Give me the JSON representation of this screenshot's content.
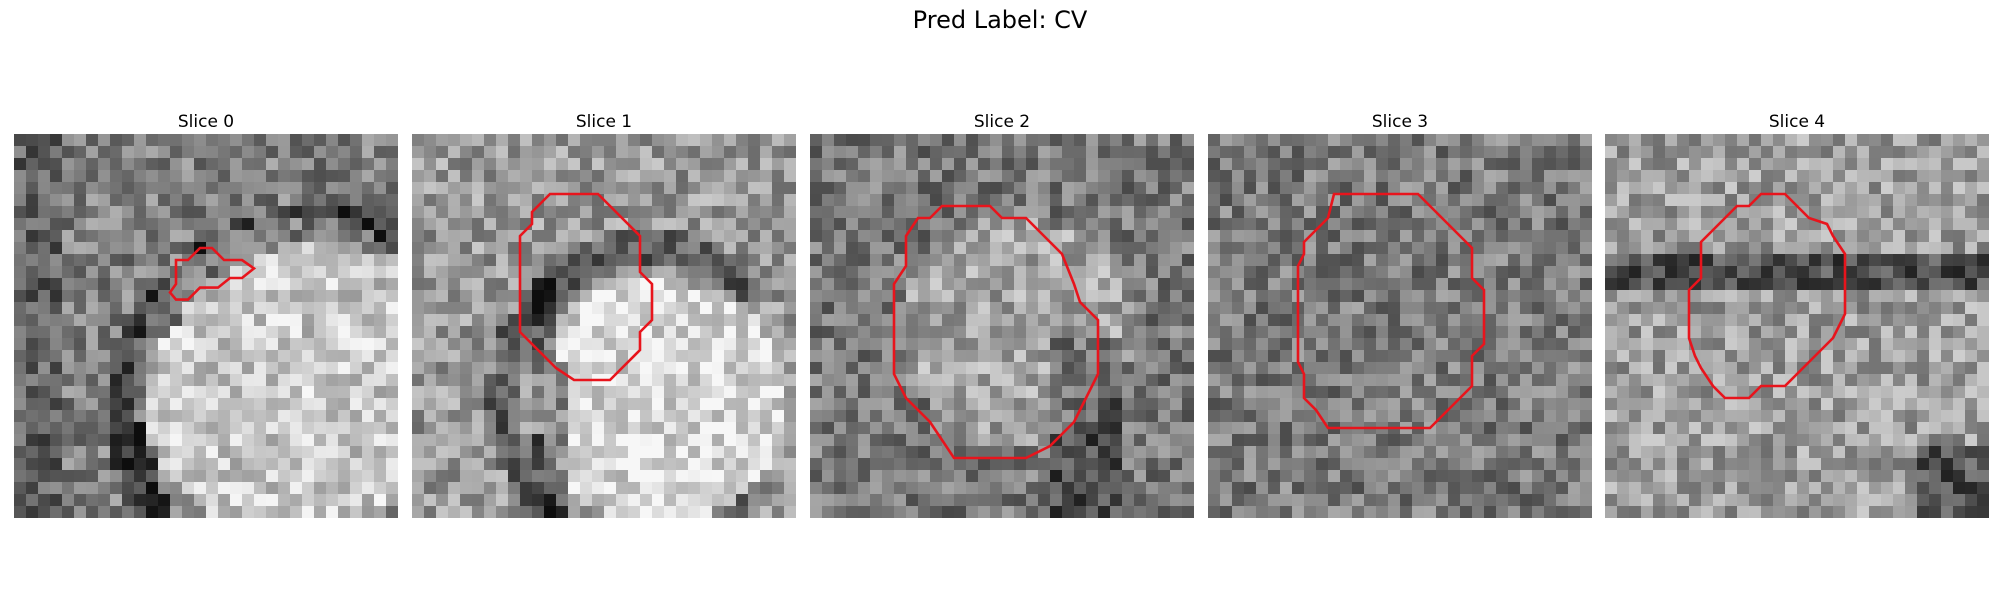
{
  "figure": {
    "title": "Pred Label: CV"
  },
  "panels": [
    {
      "title": "Slice 0",
      "seed": 11,
      "tone": "bright-lower-right",
      "contour": "small-blob"
    },
    {
      "title": "Slice 1",
      "seed": 23,
      "tone": "bright-center",
      "contour": "octagon-large"
    },
    {
      "title": "Slice 2",
      "seed": 37,
      "tone": "mid-center",
      "contour": "octagon-tall"
    },
    {
      "title": "Slice 3",
      "seed": 51,
      "tone": "mid-noisy",
      "contour": "octagon-wide"
    },
    {
      "title": "Slice 4",
      "seed": 67,
      "tone": "mid-band",
      "contour": "octagon-small"
    }
  ],
  "colors": {
    "contour": "#e8141c"
  }
}
